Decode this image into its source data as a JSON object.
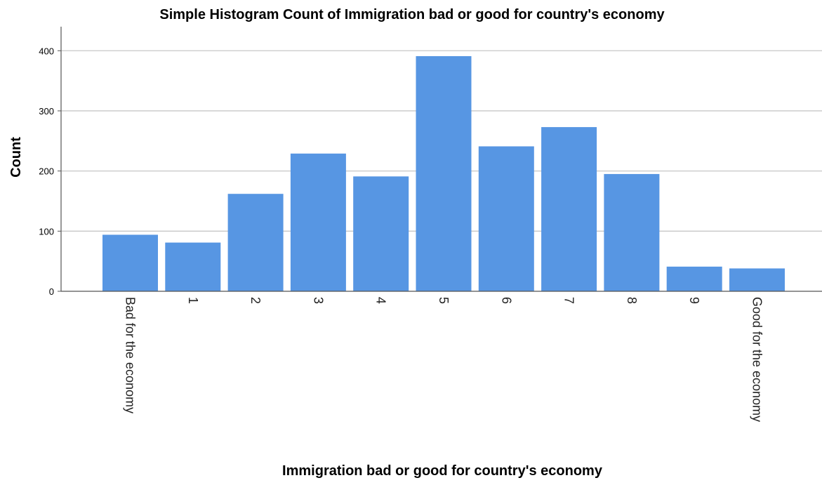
{
  "chart_data": {
    "type": "bar",
    "title": "Simple Histogram Count of Immigration bad or good for country's economy",
    "xlabel": "Immigration bad or good for country's economy",
    "ylabel": "Count",
    "categories": [
      "Bad for the economy",
      "1",
      "2",
      "3",
      "4",
      "5",
      "6",
      "7",
      "8",
      "9",
      "Good for the economy"
    ],
    "values": [
      94,
      81,
      162,
      229,
      191,
      391,
      241,
      273,
      195,
      41,
      38
    ],
    "ylim": [
      0,
      440
    ],
    "yticks": [
      0,
      100,
      200,
      300,
      400
    ],
    "grid": true,
    "colors": {
      "bar": "#5796e3",
      "grid": "#c7c7c7",
      "axis": "#555555"
    }
  }
}
